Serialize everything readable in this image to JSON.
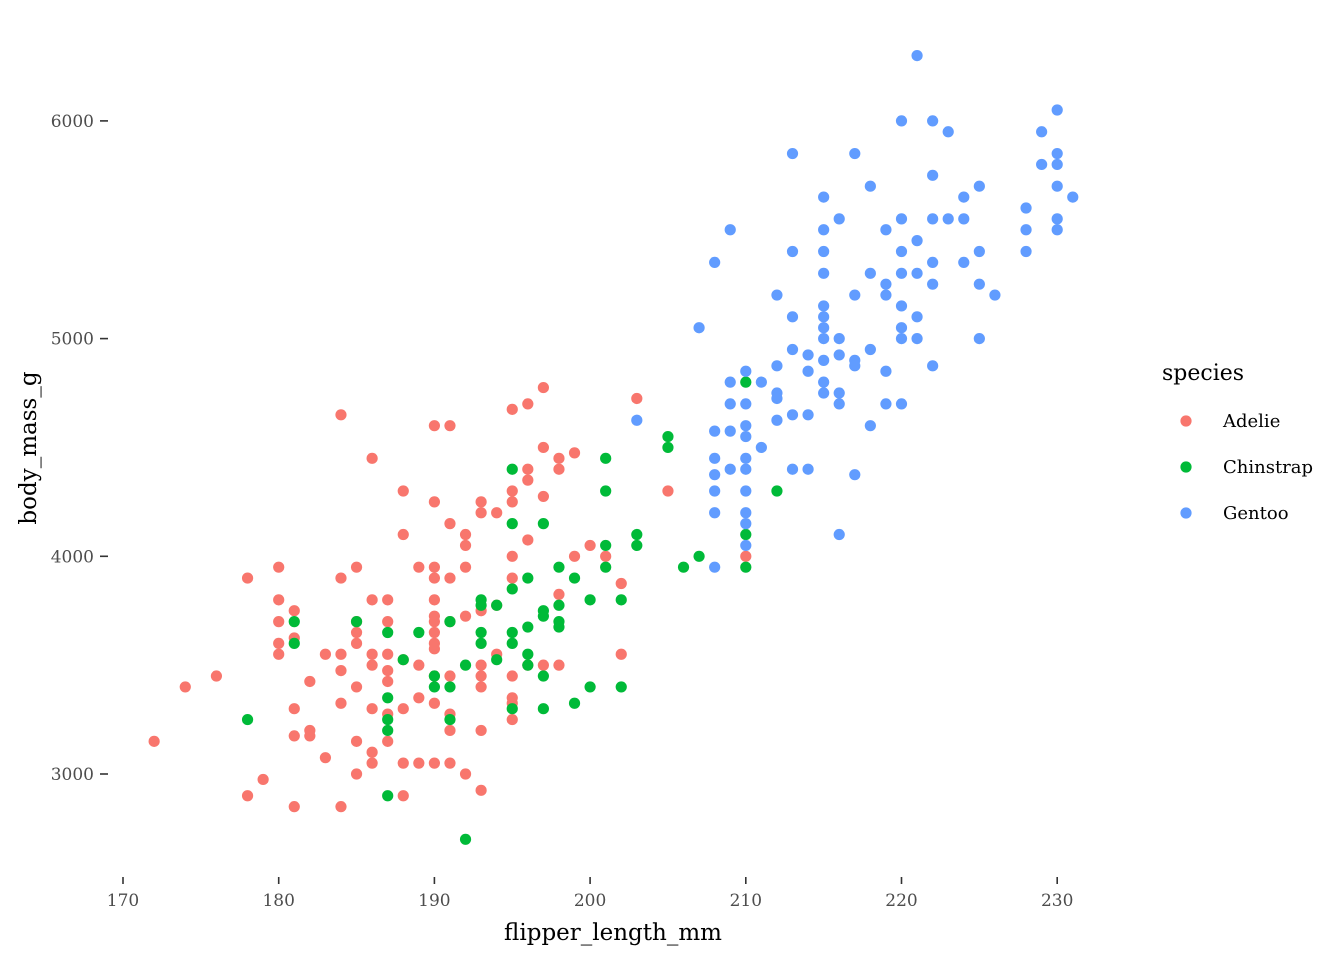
{
  "chart_data": {
    "type": "scatter",
    "title": "",
    "xlabel": "flipper_length_mm",
    "ylabel": "body_mass_g",
    "xlim": [
      170,
      232
    ],
    "ylim": [
      2600,
      6300
    ],
    "x_ticks": [
      170,
      180,
      190,
      200,
      210,
      220,
      230
    ],
    "y_ticks": [
      3000,
      4000,
      5000,
      6000
    ],
    "grid": false,
    "legend": {
      "title": "species",
      "position": "right"
    },
    "colors": {
      "Adelie": "#F8766D",
      "Chinstrap": "#00BA38",
      "Gentoo": "#619CFF"
    },
    "series": [
      {
        "name": "Adelie",
        "points": [
          [
            172,
            3150
          ],
          [
            174,
            3400
          ],
          [
            176,
            3450
          ],
          [
            178,
            3900
          ],
          [
            178,
            2900
          ],
          [
            179,
            2975
          ],
          [
            180,
            3950
          ],
          [
            180,
            3800
          ],
          [
            180,
            3700
          ],
          [
            180,
            3600
          ],
          [
            180,
            3550
          ],
          [
            181,
            3750
          ],
          [
            181,
            3625
          ],
          [
            181,
            3300
          ],
          [
            181,
            3175
          ],
          [
            181,
            2850
          ],
          [
            182,
            3425
          ],
          [
            182,
            3200
          ],
          [
            182,
            3175
          ],
          [
            183,
            3550
          ],
          [
            183,
            3075
          ],
          [
            184,
            4650
          ],
          [
            184,
            3900
          ],
          [
            184,
            3550
          ],
          [
            184,
            3475
          ],
          [
            184,
            3325
          ],
          [
            184,
            2850
          ],
          [
            185,
            3950
          ],
          [
            185,
            3700
          ],
          [
            185,
            3650
          ],
          [
            185,
            3600
          ],
          [
            185,
            3400
          ],
          [
            185,
            3150
          ],
          [
            185,
            3000
          ],
          [
            186,
            4450
          ],
          [
            186,
            3800
          ],
          [
            186,
            3550
          ],
          [
            186,
            3500
          ],
          [
            186,
            3300
          ],
          [
            186,
            3100
          ],
          [
            186,
            3050
          ],
          [
            187,
            3800
          ],
          [
            187,
            3700
          ],
          [
            187,
            3550
          ],
          [
            187,
            3475
          ],
          [
            187,
            3425
          ],
          [
            187,
            3275
          ],
          [
            187,
            3150
          ],
          [
            188,
            4300
          ],
          [
            188,
            4100
          ],
          [
            188,
            3525
          ],
          [
            188,
            3300
          ],
          [
            188,
            3050
          ],
          [
            188,
            2900
          ],
          [
            189,
            3950
          ],
          [
            189,
            3500
          ],
          [
            189,
            3350
          ],
          [
            189,
            3050
          ],
          [
            190,
            4600
          ],
          [
            190,
            4250
          ],
          [
            190,
            3950
          ],
          [
            190,
            3900
          ],
          [
            190,
            3800
          ],
          [
            190,
            3725
          ],
          [
            190,
            3700
          ],
          [
            190,
            3650
          ],
          [
            190,
            3600
          ],
          [
            190,
            3575
          ],
          [
            190,
            3450
          ],
          [
            190,
            3325
          ],
          [
            190,
            3050
          ],
          [
            191,
            4600
          ],
          [
            191,
            4150
          ],
          [
            191,
            3900
          ],
          [
            191,
            3700
          ],
          [
            191,
            3450
          ],
          [
            191,
            3275
          ],
          [
            191,
            3200
          ],
          [
            191,
            3050
          ],
          [
            192,
            4100
          ],
          [
            192,
            4050
          ],
          [
            192,
            3950
          ],
          [
            192,
            3725
          ],
          [
            192,
            3000
          ],
          [
            193,
            4250
          ],
          [
            193,
            4200
          ],
          [
            193,
            3750
          ],
          [
            193,
            3500
          ],
          [
            193,
            3450
          ],
          [
            193,
            3400
          ],
          [
            193,
            3200
          ],
          [
            193,
            2925
          ],
          [
            194,
            4200
          ],
          [
            194,
            3775
          ],
          [
            194,
            3550
          ],
          [
            195,
            4675
          ],
          [
            195,
            4300
          ],
          [
            195,
            4250
          ],
          [
            195,
            4000
          ],
          [
            195,
            3900
          ],
          [
            195,
            3450
          ],
          [
            195,
            3350
          ],
          [
            195,
            3325
          ],
          [
            195,
            3250
          ],
          [
            196,
            4700
          ],
          [
            196,
            4400
          ],
          [
            196,
            4350
          ],
          [
            196,
            4075
          ],
          [
            196,
            3500
          ],
          [
            197,
            4775
          ],
          [
            197,
            4500
          ],
          [
            197,
            4275
          ],
          [
            197,
            3500
          ],
          [
            198,
            4450
          ],
          [
            198,
            4400
          ],
          [
            198,
            3825
          ],
          [
            198,
            3500
          ],
          [
            199,
            4475
          ],
          [
            199,
            4000
          ],
          [
            200,
            4050
          ],
          [
            201,
            4000
          ],
          [
            202,
            3875
          ],
          [
            202,
            3550
          ],
          [
            203,
            4725
          ],
          [
            205,
            4300
          ],
          [
            210,
            4000
          ]
        ]
      },
      {
        "name": "Chinstrap",
        "points": [
          [
            178,
            3250
          ],
          [
            181,
            3700
          ],
          [
            181,
            3600
          ],
          [
            185,
            3700
          ],
          [
            187,
            3650
          ],
          [
            187,
            3350
          ],
          [
            187,
            3250
          ],
          [
            187,
            3200
          ],
          [
            187,
            2900
          ],
          [
            188,
            3525
          ],
          [
            189,
            3650
          ],
          [
            190,
            3450
          ],
          [
            190,
            3400
          ],
          [
            191,
            3700
          ],
          [
            191,
            3400
          ],
          [
            191,
            3250
          ],
          [
            192,
            3500
          ],
          [
            192,
            2700
          ],
          [
            193,
            3800
          ],
          [
            193,
            3775
          ],
          [
            193,
            3650
          ],
          [
            193,
            3600
          ],
          [
            194,
            3775
          ],
          [
            194,
            3525
          ],
          [
            195,
            4400
          ],
          [
            195,
            4150
          ],
          [
            195,
            3850
          ],
          [
            195,
            3650
          ],
          [
            195,
            3600
          ],
          [
            195,
            3300
          ],
          [
            196,
            3900
          ],
          [
            196,
            3675
          ],
          [
            196,
            3550
          ],
          [
            196,
            3500
          ],
          [
            197,
            4150
          ],
          [
            197,
            3750
          ],
          [
            197,
            3725
          ],
          [
            197,
            3450
          ],
          [
            197,
            3300
          ],
          [
            198,
            3950
          ],
          [
            198,
            3775
          ],
          [
            198,
            3700
          ],
          [
            198,
            3675
          ],
          [
            199,
            3900
          ],
          [
            199,
            3325
          ],
          [
            200,
            3800
          ],
          [
            200,
            3400
          ],
          [
            201,
            4450
          ],
          [
            201,
            4300
          ],
          [
            201,
            4050
          ],
          [
            201,
            3950
          ],
          [
            202,
            3800
          ],
          [
            202,
            3400
          ],
          [
            203,
            4100
          ],
          [
            203,
            4050
          ],
          [
            205,
            4550
          ],
          [
            205,
            4500
          ],
          [
            206,
            3950
          ],
          [
            207,
            4000
          ],
          [
            210,
            4800
          ],
          [
            210,
            4100
          ],
          [
            210,
            3950
          ],
          [
            212,
            4300
          ]
        ]
      },
      {
        "name": "Gentoo",
        "points": [
          [
            203,
            4625
          ],
          [
            207,
            5050
          ],
          [
            208,
            5350
          ],
          [
            208,
            4575
          ],
          [
            208,
            4450
          ],
          [
            208,
            4375
          ],
          [
            208,
            4300
          ],
          [
            208,
            4200
          ],
          [
            208,
            3950
          ],
          [
            209,
            5500
          ],
          [
            209,
            4800
          ],
          [
            209,
            4700
          ],
          [
            209,
            4575
          ],
          [
            209,
            4400
          ],
          [
            210,
            4850
          ],
          [
            210,
            4700
          ],
          [
            210,
            4600
          ],
          [
            210,
            4550
          ],
          [
            210,
            4450
          ],
          [
            210,
            4400
          ],
          [
            210,
            4300
          ],
          [
            210,
            4200
          ],
          [
            210,
            4150
          ],
          [
            210,
            4050
          ],
          [
            211,
            4800
          ],
          [
            211,
            4500
          ],
          [
            212,
            5200
          ],
          [
            212,
            4875
          ],
          [
            212,
            4750
          ],
          [
            212,
            4725
          ],
          [
            212,
            4625
          ],
          [
            213,
            5850
          ],
          [
            213,
            5400
          ],
          [
            213,
            5100
          ],
          [
            213,
            4950
          ],
          [
            213,
            4650
          ],
          [
            213,
            4400
          ],
          [
            214,
            4925
          ],
          [
            214,
            4850
          ],
          [
            214,
            4650
          ],
          [
            214,
            4400
          ],
          [
            215,
            5650
          ],
          [
            215,
            5500
          ],
          [
            215,
            5400
          ],
          [
            215,
            5300
          ],
          [
            215,
            5150
          ],
          [
            215,
            5100
          ],
          [
            215,
            5050
          ],
          [
            215,
            5000
          ],
          [
            215,
            4900
          ],
          [
            215,
            4800
          ],
          [
            215,
            4750
          ],
          [
            216,
            5550
          ],
          [
            216,
            5000
          ],
          [
            216,
            4925
          ],
          [
            216,
            4750
          ],
          [
            216,
            4700
          ],
          [
            216,
            4100
          ],
          [
            217,
            5850
          ],
          [
            217,
            5200
          ],
          [
            217,
            4900
          ],
          [
            217,
            4875
          ],
          [
            217,
            4375
          ],
          [
            218,
            5700
          ],
          [
            218,
            5300
          ],
          [
            218,
            4950
          ],
          [
            218,
            4600
          ],
          [
            219,
            5500
          ],
          [
            219,
            5250
          ],
          [
            219,
            5200
          ],
          [
            219,
            4850
          ],
          [
            219,
            4700
          ],
          [
            220,
            6000
          ],
          [
            220,
            5550
          ],
          [
            220,
            5400
          ],
          [
            220,
            5300
          ],
          [
            220,
            5150
          ],
          [
            220,
            5050
          ],
          [
            220,
            5000
          ],
          [
            220,
            4700
          ],
          [
            221,
            6300
          ],
          [
            221,
            5450
          ],
          [
            221,
            5300
          ],
          [
            221,
            5100
          ],
          [
            221,
            5000
          ],
          [
            222,
            6000
          ],
          [
            222,
            5750
          ],
          [
            222,
            5550
          ],
          [
            222,
            5350
          ],
          [
            222,
            5250
          ],
          [
            222,
            4875
          ],
          [
            223,
            5950
          ],
          [
            223,
            5550
          ],
          [
            224,
            5650
          ],
          [
            224,
            5550
          ],
          [
            224,
            5350
          ],
          [
            225,
            5700
          ],
          [
            225,
            5400
          ],
          [
            225,
            5250
          ],
          [
            225,
            5000
          ],
          [
            226,
            5200
          ],
          [
            228,
            5600
          ],
          [
            228,
            5500
          ],
          [
            228,
            5400
          ],
          [
            229,
            5950
          ],
          [
            229,
            5800
          ],
          [
            230,
            6050
          ],
          [
            230,
            5850
          ],
          [
            230,
            5800
          ],
          [
            230,
            5700
          ],
          [
            230,
            5550
          ],
          [
            230,
            5500
          ],
          [
            231,
            5650
          ]
        ]
      }
    ]
  }
}
